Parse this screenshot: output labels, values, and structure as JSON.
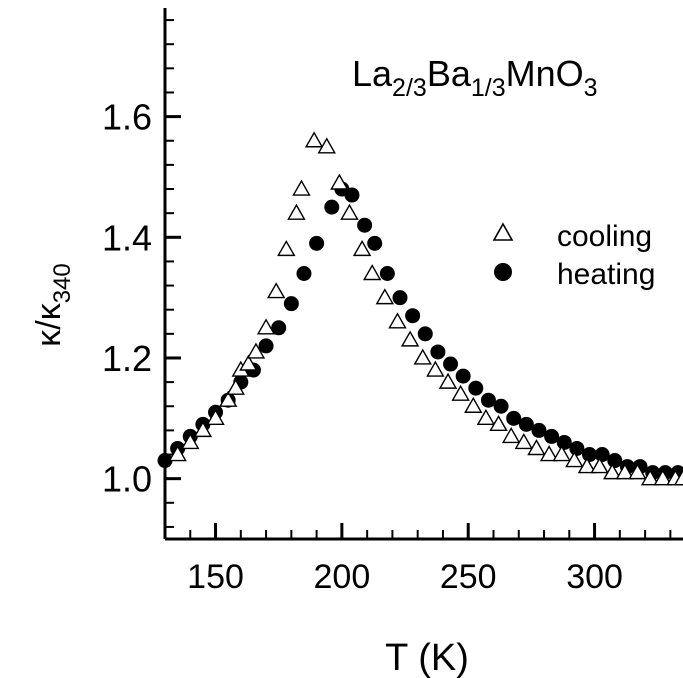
{
  "chart_data": {
    "type": "scatter",
    "title": "",
    "annotation": {
      "base": "La",
      "sub1": "2/3",
      "mid1": "Ba",
      "sub2": "1/3",
      "mid2": "MnO",
      "sub3": "3"
    },
    "xlabel": "T (K)",
    "ylabel": {
      "base": "κ/κ",
      "sub": "340"
    },
    "xlim": [
      130,
      335
    ],
    "ylim": [
      0.9,
      1.78
    ],
    "xticks": [
      150,
      200,
      250,
      300
    ],
    "yticks": [
      1.0,
      1.2,
      1.4,
      1.6
    ],
    "xtick_labels": [
      "150",
      "200",
      "250",
      "300"
    ],
    "ytick_labels": [
      "1.0",
      "1.2",
      "1.4",
      "1.6"
    ],
    "grid": false,
    "legend_position": "right-middle",
    "series": [
      {
        "name": "cooling",
        "marker": "open-triangle",
        "x": [
          135,
          140,
          145,
          150,
          155,
          158,
          160,
          163,
          166,
          170,
          174,
          178,
          182,
          184,
          189,
          194,
          199,
          203,
          208,
          212,
          217,
          222,
          227,
          232,
          237,
          242,
          247,
          252,
          257,
          262,
          267,
          272,
          277,
          282,
          287,
          292,
          297,
          302,
          307,
          312,
          317,
          322,
          327,
          332,
          335
        ],
        "y": [
          1.04,
          1.06,
          1.08,
          1.1,
          1.13,
          1.15,
          1.18,
          1.19,
          1.21,
          1.25,
          1.31,
          1.38,
          1.44,
          1.48,
          1.56,
          1.55,
          1.49,
          1.44,
          1.38,
          1.34,
          1.3,
          1.26,
          1.23,
          1.2,
          1.18,
          1.16,
          1.14,
          1.12,
          1.1,
          1.09,
          1.07,
          1.06,
          1.05,
          1.04,
          1.04,
          1.03,
          1.02,
          1.02,
          1.01,
          1.01,
          1.01,
          1.0,
          1.0,
          1.0,
          1.0
        ]
      },
      {
        "name": "heating",
        "marker": "filled-circle",
        "x": [
          130,
          135,
          140,
          145,
          150,
          155,
          160,
          165,
          170,
          175,
          180,
          185,
          190,
          196,
          200,
          204,
          209,
          213,
          218,
          223,
          228,
          233,
          238,
          243,
          248,
          253,
          258,
          263,
          268,
          273,
          278,
          283,
          288,
          293,
          298,
          303,
          308,
          313,
          318,
          323,
          328,
          333
        ],
        "y": [
          1.03,
          1.05,
          1.07,
          1.09,
          1.11,
          1.13,
          1.16,
          1.18,
          1.22,
          1.25,
          1.29,
          1.34,
          1.39,
          1.45,
          1.48,
          1.47,
          1.42,
          1.39,
          1.34,
          1.3,
          1.27,
          1.24,
          1.21,
          1.19,
          1.17,
          1.15,
          1.13,
          1.12,
          1.1,
          1.09,
          1.08,
          1.07,
          1.06,
          1.05,
          1.04,
          1.04,
          1.03,
          1.02,
          1.02,
          1.01,
          1.01,
          1.01
        ]
      }
    ]
  }
}
